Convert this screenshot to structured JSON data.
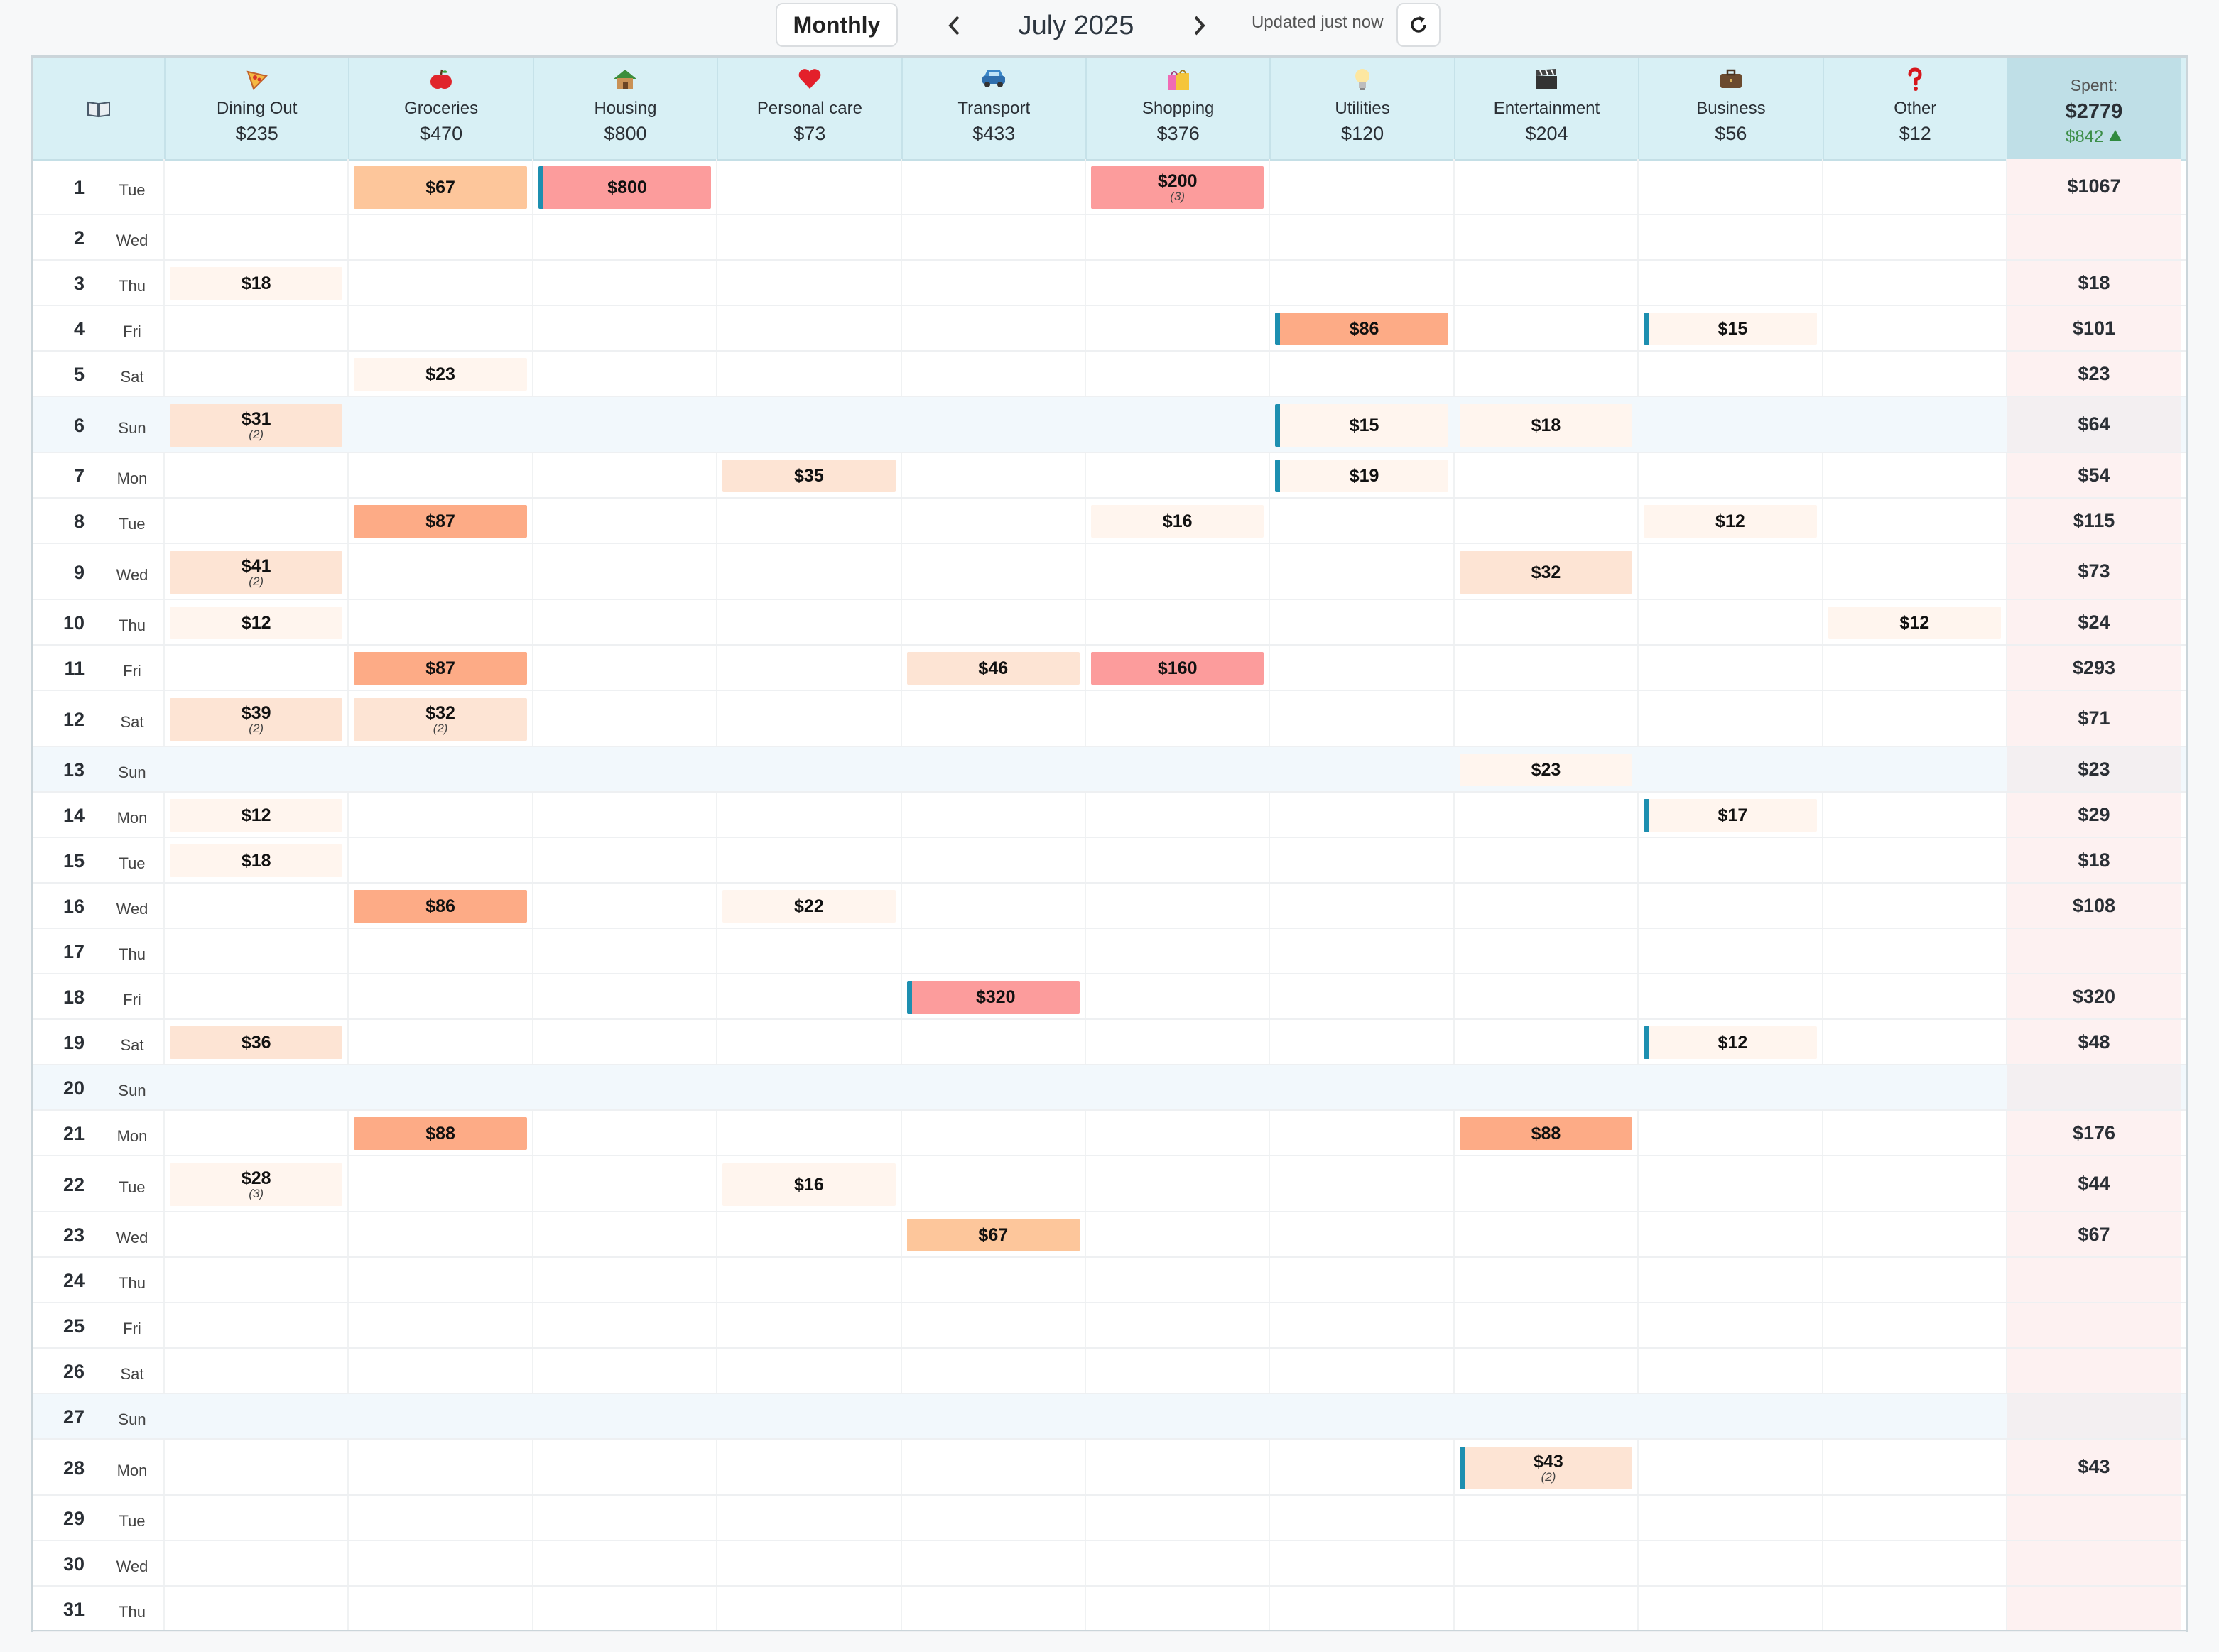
{
  "toolbar": {
    "mode": "Monthly",
    "month": "July 2025",
    "updated": "Updated just now"
  },
  "spent": {
    "label": "Spent:",
    "total": "$2779",
    "delta": "$842"
  },
  "categories": [
    {
      "name": "Dining Out",
      "total": "$235",
      "icon": "pizza-icon"
    },
    {
      "name": "Groceries",
      "total": "$470",
      "icon": "apple-icon"
    },
    {
      "name": "Housing",
      "total": "$800",
      "icon": "house-icon"
    },
    {
      "name": "Personal care",
      "total": "$73",
      "icon": "heart-icon"
    },
    {
      "name": "Transport",
      "total": "$433",
      "icon": "car-icon"
    },
    {
      "name": "Shopping",
      "total": "$376",
      "icon": "shopping-bags-icon"
    },
    {
      "name": "Utilities",
      "total": "$120",
      "icon": "light-bulb-icon"
    },
    {
      "name": "Entertainment",
      "total": "$204",
      "icon": "clapper-board-icon"
    },
    {
      "name": "Business",
      "total": "$56",
      "icon": "briefcase-icon"
    },
    {
      "name": "Other",
      "total": "$12",
      "icon": "question-mark-icon"
    }
  ],
  "intensity_colors": {
    "1": "#fff5ee",
    "2": "#fde4d4",
    "3": "#fdc69b",
    "4": "#fdab86",
    "5": "#fc9c9c"
  },
  "days": [
    {
      "num": "1",
      "name": "Tue",
      "total": "$1067",
      "entries": [
        {
          "col": 1,
          "amount": "$67",
          "level": 3
        },
        {
          "col": 2,
          "amount": "$800",
          "level": 5,
          "mark": true
        },
        {
          "col": 5,
          "amount": "$200",
          "level": 5,
          "count": "(3)"
        }
      ]
    },
    {
      "num": "2",
      "name": "Wed",
      "total": "",
      "entries": []
    },
    {
      "num": "3",
      "name": "Thu",
      "total": "$18",
      "entries": [
        {
          "col": 0,
          "amount": "$18",
          "level": 1
        }
      ]
    },
    {
      "num": "4",
      "name": "Fri",
      "total": "$101",
      "entries": [
        {
          "col": 6,
          "amount": "$86",
          "level": 4,
          "mark": true
        },
        {
          "col": 8,
          "amount": "$15",
          "level": 1,
          "mark": true
        }
      ]
    },
    {
      "num": "5",
      "name": "Sat",
      "total": "$23",
      "entries": [
        {
          "col": 1,
          "amount": "$23",
          "level": 1
        }
      ]
    },
    {
      "num": "6",
      "name": "Sun",
      "total": "$64",
      "entries": [
        {
          "col": 0,
          "amount": "$31",
          "level": 2,
          "count": "(2)"
        },
        {
          "col": 6,
          "amount": "$15",
          "level": 1,
          "mark": true
        },
        {
          "col": 7,
          "amount": "$18",
          "level": 1
        }
      ]
    },
    {
      "num": "7",
      "name": "Mon",
      "total": "$54",
      "entries": [
        {
          "col": 3,
          "amount": "$35",
          "level": 2
        },
        {
          "col": 6,
          "amount": "$19",
          "level": 1,
          "mark": true
        }
      ]
    },
    {
      "num": "8",
      "name": "Tue",
      "total": "$115",
      "entries": [
        {
          "col": 1,
          "amount": "$87",
          "level": 4
        },
        {
          "col": 5,
          "amount": "$16",
          "level": 1
        },
        {
          "col": 8,
          "amount": "$12",
          "level": 1
        }
      ]
    },
    {
      "num": "9",
      "name": "Wed",
      "total": "$73",
      "entries": [
        {
          "col": 0,
          "amount": "$41",
          "level": 2,
          "count": "(2)"
        },
        {
          "col": 7,
          "amount": "$32",
          "level": 2
        }
      ]
    },
    {
      "num": "10",
      "name": "Thu",
      "total": "$24",
      "entries": [
        {
          "col": 0,
          "amount": "$12",
          "level": 1
        },
        {
          "col": 9,
          "amount": "$12",
          "level": 1
        }
      ]
    },
    {
      "num": "11",
      "name": "Fri",
      "total": "$293",
      "entries": [
        {
          "col": 1,
          "amount": "$87",
          "level": 4
        },
        {
          "col": 4,
          "amount": "$46",
          "level": 2
        },
        {
          "col": 5,
          "amount": "$160",
          "level": 5
        }
      ]
    },
    {
      "num": "12",
      "name": "Sat",
      "total": "$71",
      "entries": [
        {
          "col": 0,
          "amount": "$39",
          "level": 2,
          "count": "(2)"
        },
        {
          "col": 1,
          "amount": "$32",
          "level": 2,
          "count": "(2)"
        }
      ]
    },
    {
      "num": "13",
      "name": "Sun",
      "total": "$23",
      "entries": [
        {
          "col": 7,
          "amount": "$23",
          "level": 1
        }
      ]
    },
    {
      "num": "14",
      "name": "Mon",
      "total": "$29",
      "entries": [
        {
          "col": 0,
          "amount": "$12",
          "level": 1
        },
        {
          "col": 8,
          "amount": "$17",
          "level": 1,
          "mark": true
        }
      ]
    },
    {
      "num": "15",
      "name": "Tue",
      "total": "$18",
      "entries": [
        {
          "col": 0,
          "amount": "$18",
          "level": 1
        }
      ]
    },
    {
      "num": "16",
      "name": "Wed",
      "total": "$108",
      "entries": [
        {
          "col": 1,
          "amount": "$86",
          "level": 4
        },
        {
          "col": 3,
          "amount": "$22",
          "level": 1
        }
      ]
    },
    {
      "num": "17",
      "name": "Thu",
      "total": "",
      "entries": []
    },
    {
      "num": "18",
      "name": "Fri",
      "total": "$320",
      "entries": [
        {
          "col": 4,
          "amount": "$320",
          "level": 5,
          "mark": true
        }
      ]
    },
    {
      "num": "19",
      "name": "Sat",
      "total": "$48",
      "entries": [
        {
          "col": 0,
          "amount": "$36",
          "level": 2
        },
        {
          "col": 8,
          "amount": "$12",
          "level": 1,
          "mark": true
        }
      ]
    },
    {
      "num": "20",
      "name": "Sun",
      "total": "",
      "entries": []
    },
    {
      "num": "21",
      "name": "Mon",
      "total": "$176",
      "entries": [
        {
          "col": 1,
          "amount": "$88",
          "level": 4
        },
        {
          "col": 7,
          "amount": "$88",
          "level": 4
        }
      ]
    },
    {
      "num": "22",
      "name": "Tue",
      "total": "$44",
      "entries": [
        {
          "col": 0,
          "amount": "$28",
          "level": 1,
          "count": "(3)"
        },
        {
          "col": 3,
          "amount": "$16",
          "level": 1
        }
      ]
    },
    {
      "num": "23",
      "name": "Wed",
      "total": "$67",
      "entries": [
        {
          "col": 4,
          "amount": "$67",
          "level": 3
        }
      ]
    },
    {
      "num": "24",
      "name": "Thu",
      "total": "",
      "entries": []
    },
    {
      "num": "25",
      "name": "Fri",
      "total": "",
      "entries": []
    },
    {
      "num": "26",
      "name": "Sat",
      "total": "",
      "entries": []
    },
    {
      "num": "27",
      "name": "Sun",
      "total": "",
      "entries": []
    },
    {
      "num": "28",
      "name": "Mon",
      "total": "$43",
      "entries": [
        {
          "col": 7,
          "amount": "$43",
          "level": 2,
          "count": "(2)",
          "mark": true
        }
      ]
    },
    {
      "num": "29",
      "name": "Tue",
      "total": "",
      "entries": []
    },
    {
      "num": "30",
      "name": "Wed",
      "total": "",
      "entries": []
    },
    {
      "num": "31",
      "name": "Thu",
      "total": "",
      "entries": []
    }
  ]
}
